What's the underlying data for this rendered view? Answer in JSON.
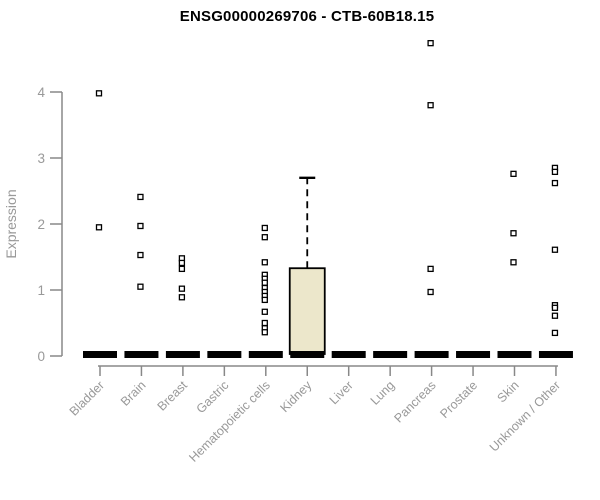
{
  "header": {
    "title": "ENSG00000269706 - CTB-60B18.15"
  },
  "chart_data": {
    "type": "boxplot",
    "title": "ENSG00000269706 - CTB-60B18.15",
    "xlabel": "",
    "ylabel": "Expression",
    "ylim": [
      0,
      4.8
    ],
    "yticks": [
      0,
      1,
      2,
      3,
      4
    ],
    "grid": false,
    "legend": "none",
    "point_marker": "open-square",
    "categories": [
      "Bladder",
      "Brain",
      "Breast",
      "Gastric",
      "Hematopoietic cells",
      "Kidney",
      "Liver",
      "Lung",
      "Pancreas",
      "Prostate",
      "Skin",
      "Unknown / Other"
    ],
    "series": [
      {
        "category": "Bladder",
        "median": 0,
        "q1": 0,
        "q3": 0,
        "whisker_high": 0,
        "points": [
          3.98,
          1.95
        ]
      },
      {
        "category": "Brain",
        "median": 0,
        "q1": 0,
        "q3": 0,
        "whisker_high": 0,
        "points": [
          2.41,
          1.97,
          1.53,
          1.05
        ]
      },
      {
        "category": "Breast",
        "median": 0,
        "q1": 0,
        "q3": 0,
        "whisker_high": 0,
        "points": [
          1.48,
          1.41,
          1.32,
          1.02,
          0.89
        ]
      },
      {
        "category": "Gastric",
        "median": 0,
        "q1": 0,
        "q3": 0,
        "whisker_high": 0,
        "points": []
      },
      {
        "category": "Hematopoietic cells",
        "median": 0,
        "q1": 0,
        "q3": 0,
        "whisker_high": 0,
        "points": [
          1.94,
          1.8,
          1.42,
          1.23,
          1.17,
          1.11,
          1.03,
          0.97,
          0.91,
          0.85,
          0.67,
          0.5,
          0.42,
          0.36
        ]
      },
      {
        "category": "Kidney",
        "median": 0,
        "q1": 0.03,
        "q3": 1.33,
        "whisker_high": 2.7,
        "points": []
      },
      {
        "category": "Liver",
        "median": 0,
        "q1": 0,
        "q3": 0,
        "whisker_high": 0,
        "points": []
      },
      {
        "category": "Lung",
        "median": 0,
        "q1": 0,
        "q3": 0,
        "whisker_high": 0,
        "points": []
      },
      {
        "category": "Pancreas",
        "median": 0,
        "q1": 0,
        "q3": 0,
        "whisker_high": 0,
        "points": [
          4.74,
          3.8,
          1.32,
          0.97
        ]
      },
      {
        "category": "Prostate",
        "median": 0,
        "q1": 0,
        "q3": 0,
        "whisker_high": 0,
        "points": []
      },
      {
        "category": "Skin",
        "median": 0,
        "q1": 0,
        "q3": 0,
        "whisker_high": 0,
        "points": [
          2.76,
          1.86,
          1.42
        ]
      },
      {
        "category": "Unknown / Other",
        "median": 0,
        "q1": 0,
        "q3": 0,
        "whisker_high": 0,
        "points": [
          2.85,
          2.79,
          2.62,
          1.61,
          0.77,
          0.73,
          0.61,
          0.35
        ]
      }
    ],
    "colors": {
      "box_fill": "#ECE7CB",
      "box_stroke": "#000000",
      "median_bar": "#000000",
      "axis": "#888888",
      "tick_label": "#999999",
      "title": "#000000",
      "point_stroke": "#000000",
      "point_fill": "#ffffff",
      "background": "#ffffff"
    }
  }
}
